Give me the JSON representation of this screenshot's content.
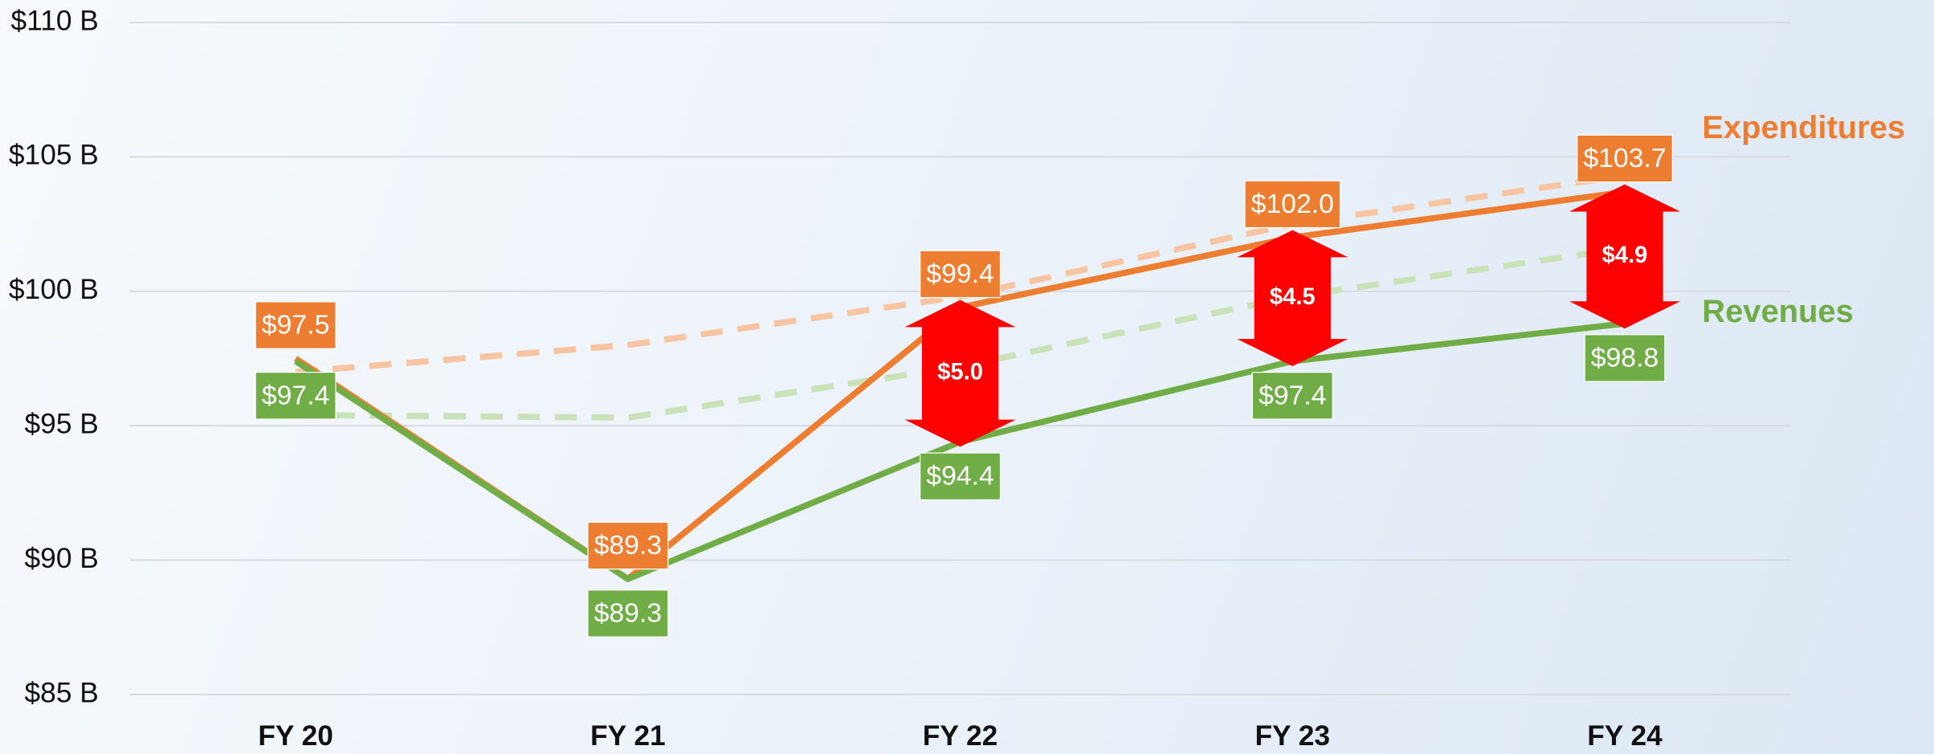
{
  "chart_data": {
    "type": "line",
    "categories": [
      "FY 20",
      "FY 21",
      "FY 22",
      "FY 23",
      "FY 24"
    ],
    "series": [
      {
        "name": "Expenditures",
        "color": "#ED7D31",
        "values": [
          97.5,
          89.3,
          99.4,
          102.0,
          103.7
        ],
        "value_labels": [
          "$97.5",
          "$89.3",
          "$99.4",
          "$102.0",
          "$103.7"
        ]
      },
      {
        "name": "Revenues",
        "color": "#70AD47",
        "values": [
          97.4,
          89.3,
          94.4,
          97.4,
          98.8
        ],
        "value_labels": [
          "$97.4",
          "$89.3",
          "$94.4",
          "$97.4",
          "$98.8"
        ]
      },
      {
        "color": "#F8C5A2",
        "dashed": true,
        "values": [
          97.0,
          98.0,
          99.8,
          102.5,
          104.3
        ]
      },
      {
        "color": "#C9E2B8",
        "dashed": true,
        "values": [
          95.4,
          95.3,
          97.2,
          99.8,
          101.6
        ]
      }
    ],
    "gaps": {
      "color": "#FF0000",
      "values": [
        null,
        null,
        5.0,
        4.5,
        4.9
      ],
      "value_labels": [
        null,
        null,
        "$5.0",
        "$4.5",
        "$4.9"
      ]
    },
    "ylim": [
      85,
      110
    ],
    "yticks": [
      {
        "value": 85,
        "label": "$85 B"
      },
      {
        "value": 90,
        "label": "$90 B"
      },
      {
        "value": 95,
        "label": "$95 B"
      },
      {
        "value": 100,
        "label": "$100 B"
      },
      {
        "value": 105,
        "label": "$105 B"
      },
      {
        "value": 110,
        "label": "$110 B"
      }
    ],
    "grid": true
  }
}
